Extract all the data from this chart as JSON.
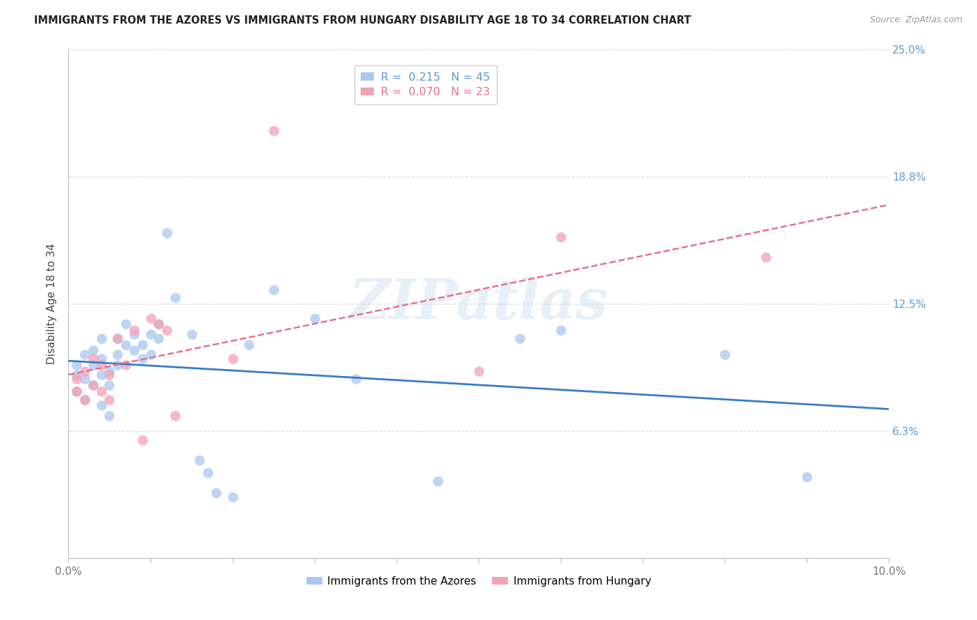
{
  "title": "IMMIGRANTS FROM THE AZORES VS IMMIGRANTS FROM HUNGARY DISABILITY AGE 18 TO 34 CORRELATION CHART",
  "source": "Source: ZipAtlas.com",
  "ylabel": "Disability Age 18 to 34",
  "xlim": [
    0.0,
    0.1
  ],
  "ylim": [
    0.0,
    0.25
  ],
  "ytick_vals": [
    0.0,
    0.0625,
    0.125,
    0.1875,
    0.25
  ],
  "ytick_labels_right": [
    "",
    "6.3%",
    "12.5%",
    "18.8%",
    "25.0%"
  ],
  "xtick_positions": [
    0.0,
    0.01,
    0.02,
    0.03,
    0.04,
    0.05,
    0.06,
    0.07,
    0.08,
    0.09,
    0.1
  ],
  "xtick_labels": [
    "0.0%",
    "",
    "",
    "",
    "",
    "",
    "",
    "",
    "",
    "",
    "10.0%"
  ],
  "legend_azores_r": "0.215",
  "legend_azores_n": "45",
  "legend_hungary_r": "0.070",
  "legend_hungary_n": "23",
  "legend_label_azores": "Immigrants from the Azores",
  "legend_label_hungary": "Immigrants from Hungary",
  "color_azores": "#a8c8f0",
  "color_hungary": "#f4a0b5",
  "color_azores_line": "#3a7bc8",
  "color_hungary_line": "#e8708a",
  "color_title": "#222222",
  "color_source": "#999999",
  "color_ytick_right": "#5b9bd5",
  "color_xtick": "#777777",
  "color_grid": "#d8d8d8",
  "color_legend_r_az": "#5b9bd5",
  "color_legend_n_az": "#5b9bd5",
  "color_legend_r_hu": "#e8708a",
  "color_legend_n_hu": "#e8708a",
  "watermark": "ZIPatlas",
  "azores_x": [
    0.001,
    0.001,
    0.001,
    0.002,
    0.002,
    0.002,
    0.003,
    0.003,
    0.003,
    0.004,
    0.004,
    0.004,
    0.004,
    0.005,
    0.005,
    0.005,
    0.006,
    0.006,
    0.006,
    0.007,
    0.007,
    0.008,
    0.008,
    0.009,
    0.009,
    0.01,
    0.01,
    0.011,
    0.011,
    0.012,
    0.013,
    0.015,
    0.016,
    0.017,
    0.018,
    0.02,
    0.022,
    0.025,
    0.03,
    0.035,
    0.045,
    0.055,
    0.06,
    0.08,
    0.09
  ],
  "azores_y": [
    0.09,
    0.095,
    0.082,
    0.1,
    0.088,
    0.078,
    0.102,
    0.095,
    0.085,
    0.108,
    0.098,
    0.09,
    0.075,
    0.092,
    0.085,
    0.07,
    0.1,
    0.108,
    0.095,
    0.105,
    0.115,
    0.102,
    0.11,
    0.105,
    0.098,
    0.11,
    0.1,
    0.108,
    0.115,
    0.16,
    0.128,
    0.11,
    0.048,
    0.042,
    0.032,
    0.03,
    0.105,
    0.132,
    0.118,
    0.088,
    0.038,
    0.108,
    0.112,
    0.1,
    0.04
  ],
  "hungary_x": [
    0.001,
    0.001,
    0.002,
    0.002,
    0.003,
    0.003,
    0.004,
    0.004,
    0.005,
    0.005,
    0.006,
    0.007,
    0.008,
    0.009,
    0.01,
    0.011,
    0.012,
    0.013,
    0.02,
    0.025,
    0.05,
    0.06,
    0.085
  ],
  "hungary_y": [
    0.088,
    0.082,
    0.092,
    0.078,
    0.098,
    0.085,
    0.095,
    0.082,
    0.09,
    0.078,
    0.108,
    0.095,
    0.112,
    0.058,
    0.118,
    0.115,
    0.112,
    0.07,
    0.098,
    0.21,
    0.092,
    0.158,
    0.148
  ]
}
